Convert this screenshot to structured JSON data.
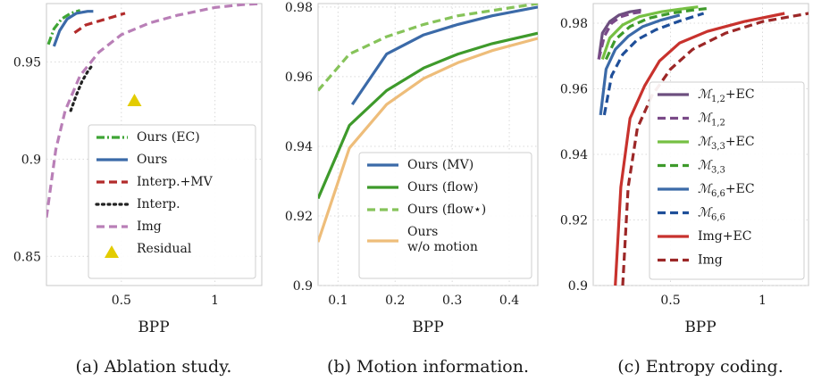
{
  "chart_data": [
    {
      "type": "line",
      "caption": "(a) Ablation study.",
      "xlabel": "BPP",
      "ylabel": "",
      "xlim": [
        0.1,
        1.25
      ],
      "ylim": [
        0.835,
        0.98
      ],
      "xticks": [
        0.5,
        1
      ],
      "xtick_labels": [
        "0.5",
        "1"
      ],
      "yticks": [
        0.85,
        0.9,
        0.95
      ],
      "ytick_labels": [
        "0.85",
        "0.9",
        "0.95"
      ],
      "grid": true,
      "legend_position": "bottom-right",
      "series": [
        {
          "name": "Ours (EC)",
          "color": "#3fa535",
          "dash": "dashdot",
          "width": 3.2,
          "x": [
            0.11,
            0.14,
            0.18,
            0.23,
            0.28
          ],
          "y": [
            0.959,
            0.967,
            0.972,
            0.975,
            0.9765
          ]
        },
        {
          "name": "Ours",
          "color": "#3b6aa8",
          "dash": "solid",
          "width": 3.2,
          "x": [
            0.14,
            0.17,
            0.21,
            0.26,
            0.32,
            0.35
          ],
          "y": [
            0.958,
            0.966,
            0.972,
            0.975,
            0.976,
            0.976
          ]
        },
        {
          "name": "Interp.+MV",
          "color": "#b22b2b",
          "dash": "dashed",
          "width": 3.2,
          "x": [
            0.25,
            0.31,
            0.38,
            0.45,
            0.52
          ],
          "y": [
            0.965,
            0.969,
            0.971,
            0.973,
            0.975
          ]
        },
        {
          "name": "Interp.",
          "color": "#222222",
          "dash": "dotted",
          "width": 3.2,
          "x": [
            0.23,
            0.26,
            0.29,
            0.32,
            0.35
          ],
          "y": [
            0.925,
            0.933,
            0.94,
            0.945,
            0.949
          ]
        },
        {
          "name": "Img",
          "color": "#b97fb7",
          "dash": "dashed",
          "width": 3.2,
          "x": [
            0.1,
            0.15,
            0.2,
            0.28,
            0.38,
            0.5,
            0.65,
            0.8,
            1.0,
            1.15,
            1.25
          ],
          "y": [
            0.87,
            0.905,
            0.925,
            0.943,
            0.955,
            0.964,
            0.97,
            0.974,
            0.978,
            0.9795,
            0.98
          ]
        },
        {
          "name": "Residual",
          "color": "#e3cc00",
          "marker": "triangle",
          "type": "scatter",
          "x": [
            0.57
          ],
          "y": [
            0.93
          ]
        }
      ]
    },
    {
      "type": "line",
      "caption": "(b) Motion information.",
      "xlabel": "BPP",
      "ylabel": "",
      "xlim": [
        0.065,
        0.45
      ],
      "ylim": [
        0.9,
        0.981
      ],
      "xticks": [
        0.1,
        0.2,
        0.3,
        0.4
      ],
      "xtick_labels": [
        "0.1",
        "0.2",
        "0.3",
        "0.4"
      ],
      "yticks": [
        0.9,
        0.92,
        0.94,
        0.96,
        0.98
      ],
      "ytick_labels": [
        "0.9",
        "0.92",
        "0.94",
        "0.96",
        "0.98"
      ],
      "grid": true,
      "legend_position": "bottom-right",
      "series": [
        {
          "name": "Ours (MV)",
          "color": "#3b6aa8",
          "dash": "solid",
          "width": 3.2,
          "x": [
            0.125,
            0.185,
            0.25,
            0.31,
            0.37,
            0.45
          ],
          "y": [
            0.952,
            0.9665,
            0.972,
            0.975,
            0.9775,
            0.98
          ]
        },
        {
          "name": "Ours (flow)",
          "color": "#3e9a2b",
          "dash": "solid",
          "width": 3.2,
          "x": [
            0.065,
            0.12,
            0.185,
            0.25,
            0.31,
            0.37,
            0.45
          ],
          "y": [
            0.925,
            0.946,
            0.956,
            0.9625,
            0.9665,
            0.9695,
            0.9725
          ]
        },
        {
          "name": "Ours (flow⋆)",
          "color": "#86c35a",
          "dash": "dashed",
          "width": 3.2,
          "x": [
            0.065,
            0.12,
            0.185,
            0.25,
            0.31,
            0.37,
            0.45
          ],
          "y": [
            0.956,
            0.9665,
            0.9715,
            0.975,
            0.9775,
            0.979,
            0.981
          ]
        },
        {
          "name": "Ours w/o motion",
          "name_line1": "Ours",
          "name_line2": "w/o motion",
          "color": "#eebd7a",
          "dash": "solid",
          "width": 3.2,
          "x": [
            0.065,
            0.12,
            0.185,
            0.25,
            0.31,
            0.37,
            0.45
          ],
          "y": [
            0.9125,
            0.9395,
            0.952,
            0.9595,
            0.964,
            0.9675,
            0.971
          ]
        }
      ]
    },
    {
      "type": "line",
      "caption": "(c) Entropy coding.",
      "xlabel": "BPP",
      "ylabel": "",
      "xlim": [
        0.08,
        1.25
      ],
      "ylim": [
        0.9,
        0.986
      ],
      "xticks": [
        0.5,
        1
      ],
      "xtick_labels": [
        "0.5",
        "1"
      ],
      "yticks": [
        0.9,
        0.92,
        0.94,
        0.96,
        0.98
      ],
      "ytick_labels": [
        "0.9",
        "0.92",
        "0.94",
        "0.96",
        "0.98"
      ],
      "grid": true,
      "legend_position": "bottom-right",
      "series": [
        {
          "name": "M_{1,2}+EC",
          "label_main": "ℳ",
          "label_sub": "1,2",
          "label_suffix": "+EC",
          "color": "#6d4f7f",
          "dash": "solid",
          "width": 3.2,
          "x": [
            0.11,
            0.13,
            0.17,
            0.22,
            0.28,
            0.34
          ],
          "y": [
            0.969,
            0.977,
            0.9805,
            0.9825,
            0.9835,
            0.984
          ]
        },
        {
          "name": "M_{1,2}",
          "label_main": "ℳ",
          "label_sub": "1,2",
          "label_suffix": "",
          "color": "#7a4a88",
          "dash": "dashed",
          "width": 3.2,
          "x": [
            0.11,
            0.14,
            0.18,
            0.23,
            0.29,
            0.35
          ],
          "y": [
            0.969,
            0.976,
            0.98,
            0.982,
            0.983,
            0.9835
          ]
        },
        {
          "name": "M_{3,3}+EC",
          "label_main": "ℳ",
          "label_sub": "3,3",
          "label_suffix": "+EC",
          "color": "#76c043",
          "dash": "solid",
          "width": 3.2,
          "x": [
            0.13,
            0.17,
            0.24,
            0.33,
            0.45,
            0.58,
            0.65
          ],
          "y": [
            0.969,
            0.9755,
            0.9795,
            0.982,
            0.9835,
            0.9845,
            0.985
          ]
        },
        {
          "name": "M_{3,3}",
          "label_main": "ℳ",
          "label_sub": "3,3",
          "label_suffix": "",
          "color": "#3e9a2b",
          "dash": "dashed",
          "width": 3.2,
          "x": [
            0.15,
            0.2,
            0.28,
            0.38,
            0.5,
            0.62,
            0.7
          ],
          "y": [
            0.969,
            0.975,
            0.979,
            0.9815,
            0.983,
            0.984,
            0.9845
          ]
        },
        {
          "name": "M_{6,6}+EC",
          "label_main": "ℳ",
          "label_sub": "6,6",
          "label_suffix": "+EC",
          "color": "#3b6aa8",
          "dash": "solid",
          "width": 3.2,
          "x": [
            0.12,
            0.15,
            0.2,
            0.27,
            0.35,
            0.45,
            0.55
          ],
          "y": [
            0.952,
            0.966,
            0.972,
            0.976,
            0.979,
            0.981,
            0.9825
          ]
        },
        {
          "name": "M_{6,6}",
          "label_main": "ℳ",
          "label_sub": "6,6",
          "label_suffix": "",
          "color": "#1f4f99",
          "dash": "dashed",
          "width": 3.2,
          "x": [
            0.14,
            0.18,
            0.24,
            0.32,
            0.42,
            0.54,
            0.68
          ],
          "y": [
            0.952,
            0.964,
            0.9705,
            0.975,
            0.978,
            0.9805,
            0.983
          ]
        },
        {
          "name": "Img+EC",
          "color": "#c8322d",
          "dash": "solid",
          "width": 3.2,
          "x": [
            0.2,
            0.23,
            0.28,
            0.36,
            0.44,
            0.55,
            0.7,
            0.9,
            1.12
          ],
          "y": [
            0.9,
            0.93,
            0.951,
            0.961,
            0.9685,
            0.974,
            0.9775,
            0.9805,
            0.983
          ]
        },
        {
          "name": "Img",
          "color": "#9c2727",
          "dash": "dashed",
          "width": 3.2,
          "x": [
            0.24,
            0.27,
            0.32,
            0.4,
            0.5,
            0.62,
            0.8,
            1.0,
            1.25
          ],
          "y": [
            0.9,
            0.93,
            0.948,
            0.958,
            0.966,
            0.972,
            0.977,
            0.9805,
            0.983
          ]
        }
      ]
    }
  ]
}
